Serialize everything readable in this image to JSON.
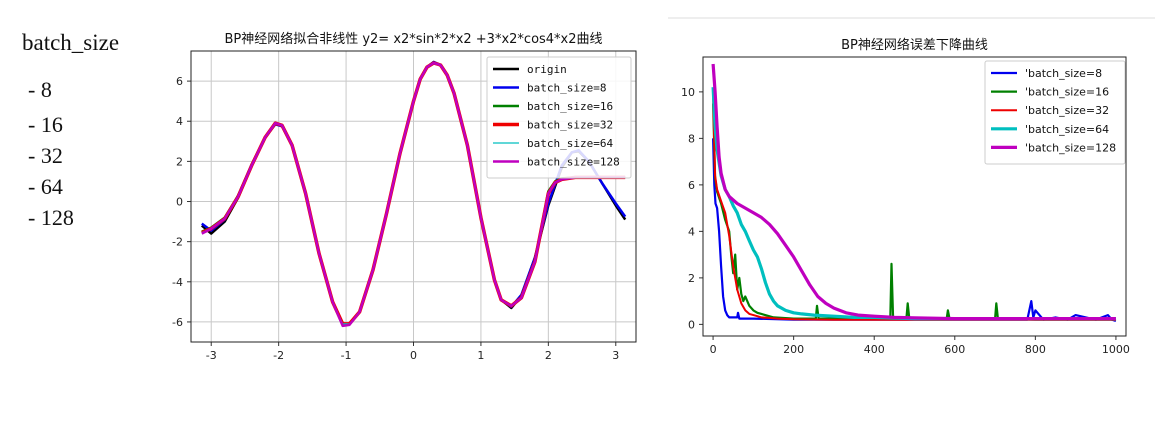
{
  "side_panel": {
    "title": "batch_size",
    "items": [
      "- 8",
      "- 16",
      "- 32",
      "- 64",
      "- 128"
    ]
  },
  "chart_data": [
    {
      "type": "line",
      "title": "BP神经网络拟合非线性   y2= x2*sin*2*x2 +3*x2*cos4*x2曲线",
      "xlabel": "",
      "ylabel": "",
      "xlim": [
        -3.3,
        3.3
      ],
      "ylim": [
        -7,
        7.5
      ],
      "xticks": [
        "-3",
        "-2",
        "-1",
        "0",
        "1",
        "2",
        "3"
      ],
      "yticks": [
        "-6",
        "-4",
        "-2",
        "0",
        "2",
        "4",
        "6"
      ],
      "grid": true,
      "legend": "top-right",
      "colors": [
        "#000000",
        "#0000ee",
        "#008000",
        "#ee0000",
        "#00bfbf",
        "#bf00bf"
      ],
      "series": [
        {
          "name": "origin",
          "x": [
            -3.14,
            -3.0,
            -2.8,
            -2.6,
            -2.4,
            -2.2,
            -2.05,
            -1.95,
            -1.8,
            -1.6,
            -1.4,
            -1.2,
            -1.05,
            -0.95,
            -0.8,
            -0.6,
            -0.4,
            -0.2,
            0.0,
            0.1,
            0.2,
            0.3,
            0.4,
            0.5,
            0.6,
            0.8,
            1.0,
            1.2,
            1.3,
            1.45,
            1.6,
            1.8,
            2.0,
            2.2,
            2.35,
            2.45,
            2.6,
            2.8,
            3.0,
            3.14
          ],
          "y": [
            -1.2,
            -1.6,
            -1.0,
            0.2,
            1.8,
            3.2,
            3.9,
            3.8,
            2.8,
            0.4,
            -2.6,
            -5.0,
            -6.1,
            -6.1,
            -5.5,
            -3.4,
            -0.6,
            2.4,
            5.0,
            6.1,
            6.7,
            6.95,
            6.8,
            6.3,
            5.4,
            2.8,
            -0.8,
            -3.9,
            -4.9,
            -5.3,
            -4.7,
            -2.8,
            -0.2,
            1.7,
            2.45,
            2.5,
            2.0,
            0.9,
            -0.2,
            -0.9
          ]
        },
        {
          "name": "batch_size=8",
          "x": [
            -3.14,
            -3.0,
            -2.8,
            -2.6,
            -2.4,
            -2.2,
            -2.05,
            -1.95,
            -1.8,
            -1.6,
            -1.4,
            -1.2,
            -1.05,
            -0.95,
            -0.8,
            -0.6,
            -0.4,
            -0.2,
            0.0,
            0.1,
            0.2,
            0.3,
            0.4,
            0.5,
            0.6,
            0.8,
            1.0,
            1.2,
            1.3,
            1.45,
            1.6,
            1.8,
            2.0,
            2.2,
            2.35,
            2.45,
            2.6,
            2.8,
            3.0,
            3.14
          ],
          "y": [
            -1.1,
            -1.45,
            -0.9,
            0.3,
            1.85,
            3.2,
            3.85,
            3.75,
            2.8,
            0.4,
            -2.6,
            -5.0,
            -6.1,
            -6.1,
            -5.5,
            -3.4,
            -0.6,
            2.4,
            5.0,
            6.1,
            6.7,
            6.95,
            6.8,
            6.3,
            5.4,
            2.8,
            -0.8,
            -3.9,
            -4.9,
            -5.25,
            -4.65,
            -2.8,
            -0.1,
            1.8,
            2.45,
            2.55,
            2.0,
            0.9,
            -0.1,
            -0.75
          ]
        },
        {
          "name": "batch_size=16",
          "x": [
            -3.14,
            -3.0,
            -2.8,
            -2.6,
            -2.4,
            -2.2,
            -2.05,
            -1.95,
            -1.8,
            -1.6,
            -1.4,
            -1.2,
            -1.05,
            -0.95,
            -0.8,
            -0.6,
            -0.4,
            -0.2,
            0.0,
            0.1,
            0.2,
            0.3,
            0.4,
            0.5,
            0.6,
            0.8,
            1.0,
            1.2,
            1.3,
            1.45,
            1.6,
            1.8,
            2.0,
            2.1,
            2.2,
            2.4,
            2.6,
            2.8,
            3.0,
            3.14
          ],
          "y": [
            -1.5,
            -1.3,
            -0.8,
            0.3,
            1.8,
            3.2,
            3.9,
            3.8,
            2.8,
            0.4,
            -2.6,
            -5.0,
            -6.1,
            -6.1,
            -5.5,
            -3.4,
            -0.6,
            2.4,
            5.0,
            6.1,
            6.7,
            6.9,
            6.8,
            6.3,
            5.4,
            2.8,
            -0.8,
            -3.9,
            -4.9,
            -5.2,
            -4.8,
            -3.0,
            0.5,
            1.0,
            1.15,
            1.2,
            1.2,
            1.2,
            1.2,
            1.2
          ]
        },
        {
          "name": "batch_size=32",
          "x": [
            -3.14,
            -3.0,
            -2.8,
            -2.6,
            -2.4,
            -2.2,
            -2.05,
            -1.95,
            -1.8,
            -1.6,
            -1.4,
            -1.2,
            -1.05,
            -0.95,
            -0.8,
            -0.6,
            -0.4,
            -0.2,
            0.0,
            0.1,
            0.2,
            0.3,
            0.4,
            0.5,
            0.6,
            0.8,
            1.0,
            1.2,
            1.3,
            1.45,
            1.6,
            1.8,
            2.0,
            2.1,
            2.2,
            2.4,
            2.6,
            2.8,
            3.0,
            3.14
          ],
          "y": [
            -1.55,
            -1.35,
            -0.85,
            0.25,
            1.8,
            3.2,
            3.9,
            3.8,
            2.8,
            0.4,
            -2.6,
            -5.0,
            -6.1,
            -6.1,
            -5.5,
            -3.4,
            -0.6,
            2.4,
            5.0,
            6.1,
            6.7,
            6.9,
            6.8,
            6.3,
            5.4,
            2.8,
            -0.8,
            -3.9,
            -4.9,
            -5.2,
            -4.8,
            -3.0,
            0.4,
            0.95,
            1.1,
            1.2,
            1.2,
            1.2,
            1.2,
            1.2
          ]
        },
        {
          "name": "batch_size=64",
          "x": [
            -3.14,
            -3.0,
            -2.8,
            -2.6,
            -2.4,
            -2.2,
            -2.05,
            -1.95,
            -1.8,
            -1.6,
            -1.4,
            -1.2,
            -1.05,
            -0.95,
            -0.8,
            -0.6,
            -0.4,
            -0.2,
            0.0,
            0.1,
            0.2,
            0.3,
            0.4,
            0.5,
            0.6,
            0.8,
            1.0,
            1.2,
            1.3,
            1.45,
            1.6,
            1.8,
            2.0,
            2.1,
            2.2,
            2.4,
            2.6,
            2.8,
            3.0,
            3.14
          ],
          "y": [
            -1.55,
            -1.35,
            -0.85,
            0.25,
            1.8,
            3.2,
            3.9,
            3.8,
            2.8,
            0.4,
            -2.6,
            -5.0,
            -6.1,
            -6.1,
            -5.5,
            -3.4,
            -0.6,
            2.4,
            5.0,
            6.1,
            6.7,
            6.9,
            6.8,
            6.3,
            5.4,
            2.8,
            -0.8,
            -3.9,
            -4.9,
            -5.2,
            -4.8,
            -3.0,
            0.4,
            0.95,
            1.1,
            1.2,
            1.2,
            1.2,
            1.2,
            1.2
          ]
        },
        {
          "name": "batch_size=128",
          "x": [
            -3.14,
            -3.0,
            -2.8,
            -2.6,
            -2.4,
            -2.2,
            -2.05,
            -1.95,
            -1.8,
            -1.6,
            -1.4,
            -1.2,
            -1.05,
            -0.95,
            -0.8,
            -0.6,
            -0.4,
            -0.2,
            0.0,
            0.1,
            0.2,
            0.3,
            0.4,
            0.5,
            0.6,
            0.8,
            1.0,
            1.2,
            1.3,
            1.45,
            1.6,
            1.8,
            2.0,
            2.1,
            2.2,
            2.4,
            2.6,
            2.8,
            3.0,
            3.14
          ],
          "y": [
            -1.6,
            -1.35,
            -0.85,
            0.25,
            1.8,
            3.2,
            3.9,
            3.8,
            2.8,
            0.4,
            -2.6,
            -5.0,
            -6.2,
            -6.15,
            -5.5,
            -3.4,
            -0.6,
            2.4,
            5.0,
            6.1,
            6.7,
            6.9,
            6.8,
            6.3,
            5.4,
            2.8,
            -0.8,
            -3.9,
            -4.9,
            -5.2,
            -4.8,
            -3.0,
            0.4,
            0.95,
            1.1,
            1.2,
            1.2,
            1.2,
            1.2,
            1.2
          ]
        }
      ]
    },
    {
      "type": "line",
      "title": "BP神经网络误差下降曲线",
      "xlabel": "",
      "ylabel": "",
      "xlim": [
        -25,
        1025
      ],
      "ylim": [
        -0.5,
        11.5
      ],
      "xticks": [
        "0",
        "200",
        "400",
        "600",
        "800",
        "1000"
      ],
      "yticks": [
        "0",
        "2",
        "4",
        "6",
        "8",
        "10"
      ],
      "grid": false,
      "legend": "top-right",
      "colors": [
        "#0000ee",
        "#008000",
        "#ee0000",
        "#00bfbf",
        "#bf00bf"
      ],
      "series": [
        {
          "name": "'batch_size=8",
          "x": [
            0,
            3,
            6,
            10,
            15,
            20,
            25,
            30,
            35,
            40,
            50,
            60,
            62,
            65,
            80,
            100,
            200,
            400,
            600,
            780,
            790,
            795,
            800,
            820,
            850,
            880,
            900,
            950,
            980,
            990,
            1000
          ],
          "y": [
            8.0,
            6.0,
            5.2,
            5.0,
            4.0,
            2.5,
            1.2,
            0.6,
            0.4,
            0.3,
            0.3,
            0.3,
            0.5,
            0.25,
            0.25,
            0.25,
            0.2,
            0.2,
            0.2,
            0.2,
            1.0,
            0.3,
            0.6,
            0.2,
            0.3,
            0.2,
            0.4,
            0.2,
            0.4,
            0.2,
            0.15
          ]
        },
        {
          "name": "'batch_size=16",
          "x": [
            0,
            5,
            10,
            20,
            30,
            40,
            45,
            50,
            55,
            60,
            65,
            70,
            75,
            80,
            90,
            100,
            110,
            150,
            200,
            255,
            258,
            262,
            300,
            440,
            443,
            447,
            450,
            480,
            483,
            487,
            500,
            580,
            583,
            587,
            700,
            703,
            707,
            800,
            1000
          ],
          "y": [
            9.5,
            6.3,
            5.7,
            5.2,
            4.5,
            4.0,
            3.0,
            2.2,
            3.0,
            1.5,
            2.0,
            1.3,
            1.0,
            1.2,
            0.8,
            0.6,
            0.5,
            0.3,
            0.25,
            0.25,
            0.8,
            0.25,
            0.25,
            0.25,
            2.6,
            0.25,
            0.25,
            0.25,
            0.9,
            0.25,
            0.25,
            0.25,
            0.6,
            0.25,
            0.25,
            0.9,
            0.25,
            0.2,
            0.2
          ]
        },
        {
          "name": "'batch_size=32",
          "x": [
            0,
            5,
            10,
            20,
            30,
            40,
            50,
            60,
            70,
            80,
            90,
            100,
            110,
            120,
            140,
            160,
            200,
            300,
            400,
            600,
            800,
            1000
          ],
          "y": [
            9.8,
            6.4,
            5.8,
            5.3,
            4.8,
            3.8,
            2.5,
            1.5,
            0.9,
            0.6,
            0.45,
            0.4,
            0.35,
            0.3,
            0.28,
            0.25,
            0.22,
            0.2,
            0.2,
            0.2,
            0.2,
            0.2
          ]
        },
        {
          "name": "'batch_size=64",
          "x": [
            0,
            5,
            10,
            20,
            30,
            40,
            50,
            60,
            70,
            80,
            90,
            100,
            110,
            120,
            130,
            140,
            150,
            160,
            180,
            200,
            220,
            250,
            300,
            350,
            400,
            500,
            600,
            800,
            1000
          ],
          "y": [
            10.2,
            8.5,
            7.5,
            6.4,
            5.8,
            5.5,
            5.1,
            4.8,
            4.3,
            4.0,
            3.6,
            3.2,
            2.9,
            2.4,
            1.8,
            1.3,
            1.0,
            0.8,
            0.6,
            0.5,
            0.45,
            0.4,
            0.35,
            0.3,
            0.3,
            0.25,
            0.25,
            0.25,
            0.25
          ]
        },
        {
          "name": "'batch_size=128",
          "x": [
            0,
            5,
            10,
            15,
            20,
            30,
            40,
            50,
            60,
            80,
            100,
            120,
            140,
            160,
            180,
            200,
            220,
            240,
            260,
            280,
            300,
            330,
            360,
            400,
            450,
            500,
            600,
            700,
            800,
            900,
            1000
          ],
          "y": [
            11.2,
            10.0,
            8.5,
            7.2,
            6.5,
            5.8,
            5.5,
            5.35,
            5.2,
            5.0,
            4.8,
            4.6,
            4.3,
            3.9,
            3.4,
            2.9,
            2.3,
            1.7,
            1.2,
            0.9,
            0.7,
            0.5,
            0.4,
            0.35,
            0.3,
            0.28,
            0.25,
            0.25,
            0.25,
            0.25,
            0.25
          ]
        }
      ]
    }
  ]
}
